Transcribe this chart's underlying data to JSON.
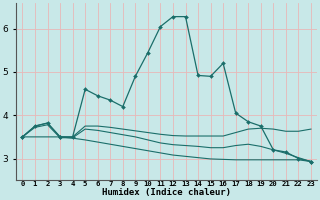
{
  "xlabel": "Humidex (Indice chaleur)",
  "bg_color": "#c8e8e8",
  "grid_color": "#e8b8b8",
  "line_color": "#1a6e6a",
  "xlim": [
    -0.5,
    23.5
  ],
  "ylim": [
    2.5,
    6.6
  ],
  "yticks": [
    3,
    4,
    5,
    6
  ],
  "xtick_labels": [
    "0",
    "1",
    "2",
    "3",
    "4",
    "5",
    "6",
    "7",
    "8",
    "9",
    "10",
    "11",
    "12",
    "13",
    "14",
    "15",
    "16",
    "17",
    "18",
    "19",
    "20",
    "21",
    "22",
    "23"
  ],
  "line1_x": [
    0,
    1,
    2,
    3,
    4,
    5,
    6,
    7,
    8,
    9,
    10,
    11,
    12,
    13,
    14,
    15,
    16,
    17,
    18,
    19,
    20,
    21,
    22,
    23
  ],
  "line1_y": [
    3.5,
    3.75,
    3.82,
    3.5,
    3.5,
    4.6,
    4.45,
    4.35,
    4.2,
    4.9,
    5.45,
    6.05,
    6.28,
    6.28,
    4.92,
    4.9,
    5.2,
    4.05,
    3.85,
    3.75,
    3.2,
    3.15,
    3.0,
    2.93
  ],
  "line2_x": [
    0,
    1,
    2,
    3,
    4,
    5,
    6,
    7,
    8,
    9,
    10,
    11,
    12,
    13,
    14,
    15,
    16,
    17,
    18,
    19,
    20,
    21,
    22,
    23
  ],
  "line2_y": [
    3.5,
    3.75,
    3.82,
    3.5,
    3.5,
    3.75,
    3.75,
    3.72,
    3.68,
    3.64,
    3.6,
    3.56,
    3.53,
    3.52,
    3.52,
    3.52,
    3.52,
    3.6,
    3.68,
    3.7,
    3.68,
    3.63,
    3.63,
    3.68
  ],
  "line3_x": [
    0,
    1,
    2,
    3,
    4,
    5,
    6,
    7,
    8,
    9,
    10,
    11,
    12,
    13,
    14,
    15,
    16,
    17,
    18,
    19,
    20,
    21,
    22,
    23
  ],
  "line3_y": [
    3.5,
    3.72,
    3.78,
    3.48,
    3.48,
    3.68,
    3.65,
    3.6,
    3.55,
    3.5,
    3.43,
    3.36,
    3.32,
    3.3,
    3.28,
    3.25,
    3.25,
    3.3,
    3.33,
    3.28,
    3.2,
    3.12,
    3.02,
    2.93
  ],
  "line4_x": [
    0,
    1,
    2,
    3,
    4,
    5,
    6,
    7,
    8,
    9,
    10,
    11,
    12,
    13,
    14,
    15,
    16,
    17,
    18,
    19,
    20,
    21,
    22,
    23
  ],
  "line4_y": [
    3.5,
    3.5,
    3.5,
    3.5,
    3.47,
    3.43,
    3.38,
    3.33,
    3.28,
    3.23,
    3.18,
    3.13,
    3.08,
    3.05,
    3.02,
    2.99,
    2.98,
    2.97,
    2.97,
    2.97,
    2.97,
    2.97,
    2.97,
    2.93
  ],
  "line1_markers": [
    0,
    1,
    2,
    3,
    4,
    5,
    6,
    7,
    8,
    9,
    10,
    11,
    12,
    13,
    14,
    15,
    16,
    17,
    18,
    19,
    20,
    21,
    22,
    23
  ],
  "line4_markers": [
    0,
    3,
    23
  ]
}
